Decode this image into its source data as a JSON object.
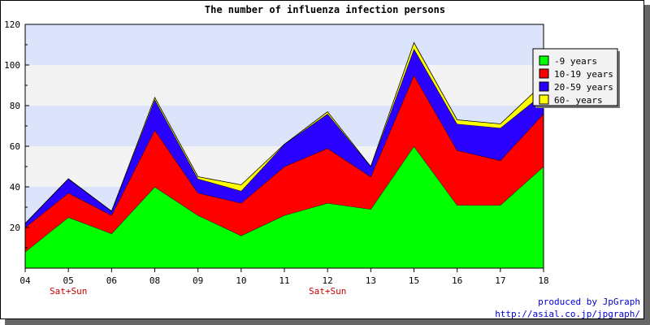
{
  "chart_data": {
    "type": "area",
    "stacked": true,
    "title": "The number of influenza infection persons",
    "categories": [
      "04",
      "05",
      "06",
      "08",
      "09",
      "10",
      "11",
      "12",
      "13",
      "15",
      "16",
      "17",
      "18"
    ],
    "weekend_labels": [
      "",
      "Sat+Sun",
      "",
      "",
      "",
      "",
      "",
      "Sat+Sun",
      "",
      "",
      "",
      "",
      ""
    ],
    "series": [
      {
        "name": "-9 years",
        "color": "#00ff00",
        "values": [
          8,
          25,
          17,
          40,
          26,
          16,
          26,
          32,
          29,
          60,
          31,
          31,
          50
        ]
      },
      {
        "name": "10-19 years",
        "color": "#ff0000",
        "values": [
          12,
          12,
          9,
          28,
          11,
          16,
          24,
          27,
          16,
          35,
          27,
          22,
          26
        ]
      },
      {
        "name": "20-59 years",
        "color": "#2a00ff",
        "values": [
          2,
          7,
          2,
          15,
          7,
          6,
          11,
          17,
          5,
          13,
          13,
          16,
          10
        ]
      },
      {
        "name": "60- years",
        "color": "#ffff00",
        "values": [
          0,
          0,
          0,
          1,
          1,
          3,
          0,
          1,
          0,
          3,
          2,
          2,
          5
        ]
      }
    ],
    "ylim": [
      0,
      120
    ],
    "yticks": [
      20,
      40,
      60,
      80,
      100,
      120
    ],
    "grid": true,
    "legend_position": "top-right"
  },
  "credit": {
    "line1": "produced by JpGraph",
    "line2": "http://asial.co.jp/jpgraph/"
  }
}
